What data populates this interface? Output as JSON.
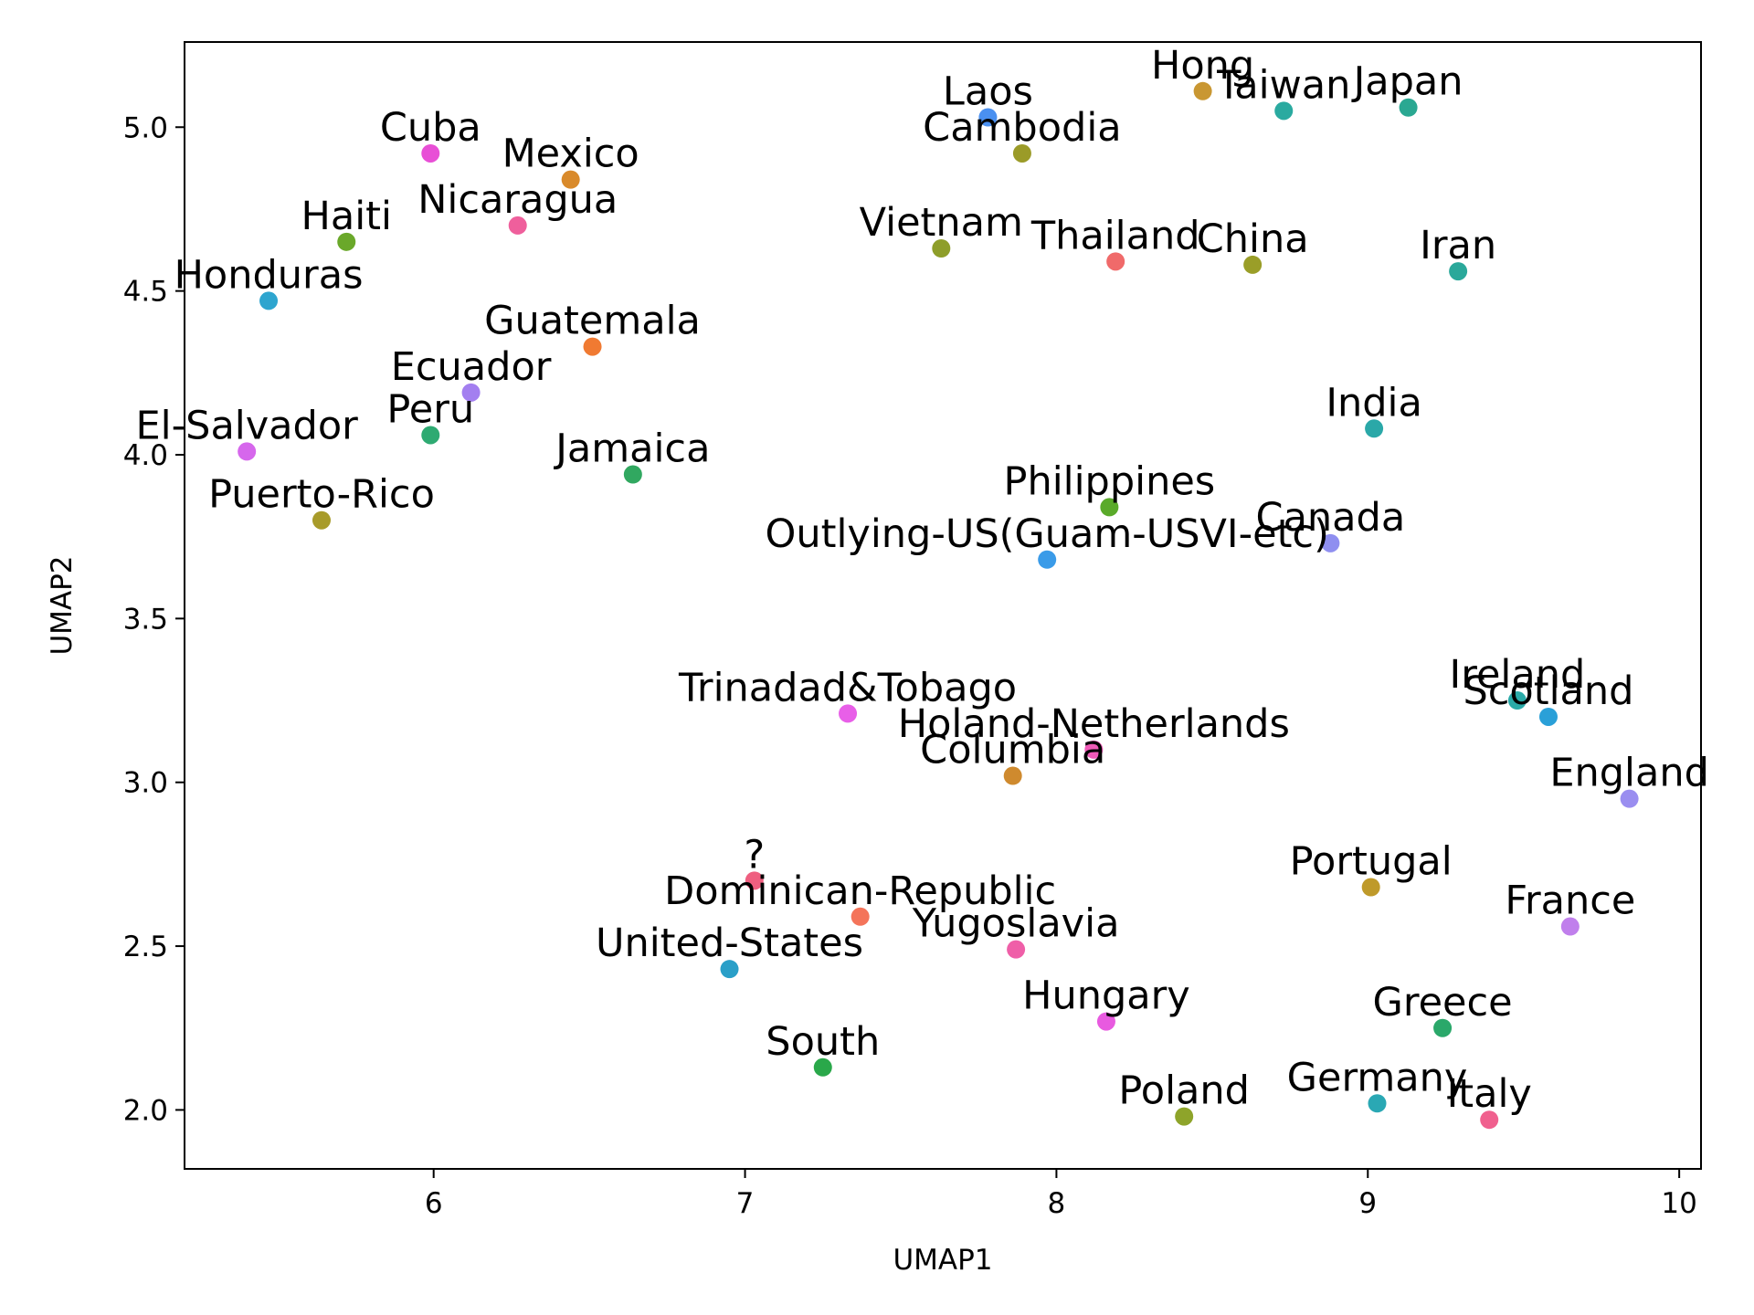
{
  "chart_data": {
    "type": "scatter",
    "xlabel": "UMAP1",
    "ylabel": "UMAP2",
    "xlim": [
      5.2,
      10.07
    ],
    "ylim": [
      1.82,
      5.26
    ],
    "x_ticks": [
      6,
      7,
      8,
      9,
      10
    ],
    "y_ticks": [
      2.0,
      2.5,
      3.0,
      3.5,
      4.0,
      4.5,
      5.0
    ],
    "x_tick_labels": [
      "6",
      "7",
      "8",
      "9",
      "10"
    ],
    "y_tick_labels": [
      "2.0",
      "2.5",
      "3.0",
      "3.5",
      "4.0",
      "4.5",
      "5.0"
    ],
    "grid": false,
    "points": [
      {
        "label": "Cuba",
        "x": 5.99,
        "y": 4.92,
        "color": "#e84fd6"
      },
      {
        "label": "Mexico",
        "x": 6.44,
        "y": 4.84,
        "color": "#d98a2b"
      },
      {
        "label": "Haiti",
        "x": 5.72,
        "y": 4.65,
        "color": "#6aa82a"
      },
      {
        "label": "Nicaragua",
        "x": 6.27,
        "y": 4.7,
        "color": "#ef5f9c"
      },
      {
        "label": "Honduras",
        "x": 5.47,
        "y": 4.47,
        "color": "#2ea5cf"
      },
      {
        "label": "Guatemala",
        "x": 6.51,
        "y": 4.33,
        "color": "#f07a32"
      },
      {
        "label": "Ecuador",
        "x": 6.12,
        "y": 4.19,
        "color": "#a37ff0"
      },
      {
        "label": "El-Salvador",
        "x": 5.4,
        "y": 4.01,
        "color": "#d667ec"
      },
      {
        "label": "Peru",
        "x": 5.99,
        "y": 4.06,
        "color": "#2eaa72"
      },
      {
        "label": "Jamaica",
        "x": 6.64,
        "y": 3.94,
        "color": "#31a860"
      },
      {
        "label": "Puerto-Rico",
        "x": 5.64,
        "y": 3.8,
        "color": "#a89b2a"
      },
      {
        "label": "Laos",
        "x": 7.78,
        "y": 5.03,
        "color": "#4a90f0"
      },
      {
        "label": "Cambodia",
        "x": 7.89,
        "y": 4.92,
        "color": "#9b9b28"
      },
      {
        "label": "Hong",
        "x": 8.47,
        "y": 5.11,
        "color": "#c99732"
      },
      {
        "label": "Taiwan",
        "x": 8.73,
        "y": 5.05,
        "color": "#2aaaa0"
      },
      {
        "label": "Japan",
        "x": 9.13,
        "y": 5.06,
        "color": "#2aa892"
      },
      {
        "label": "Vietnam",
        "x": 7.63,
        "y": 4.63,
        "color": "#8e9e2a"
      },
      {
        "label": "Thailand",
        "x": 8.19,
        "y": 4.59,
        "color": "#f06a6a"
      },
      {
        "label": "China",
        "x": 8.63,
        "y": 4.58,
        "color": "#9a9e28"
      },
      {
        "label": "Iran",
        "x": 9.29,
        "y": 4.56,
        "color": "#2aa89a"
      },
      {
        "label": "India",
        "x": 9.02,
        "y": 4.08,
        "color": "#2aa8a8"
      },
      {
        "label": "Philippines",
        "x": 8.17,
        "y": 3.84,
        "color": "#5aaa2a"
      },
      {
        "label": "Outlying-US(Guam-USVI-etc)",
        "x": 7.97,
        "y": 3.68,
        "color": "#3a9be8"
      },
      {
        "label": "Canada",
        "x": 8.88,
        "y": 3.73,
        "color": "#8f8ff0"
      },
      {
        "label": "Trinadad&Tobago",
        "x": 7.33,
        "y": 3.21,
        "color": "#e85fe8"
      },
      {
        "label": "Holand-Netherlands",
        "x": 8.12,
        "y": 3.1,
        "color": "#f05ab8"
      },
      {
        "label": "Columbia",
        "x": 7.86,
        "y": 3.02,
        "color": "#cf8a2e"
      },
      {
        "label": "Ireland",
        "x": 9.48,
        "y": 3.25,
        "color": "#2aaaa8"
      },
      {
        "label": "Scotland",
        "x": 9.58,
        "y": 3.2,
        "color": "#2aa0d8"
      },
      {
        "label": "England",
        "x": 9.84,
        "y": 2.95,
        "color": "#9a8ef0"
      },
      {
        "label": "?",
        "x": 7.03,
        "y": 2.7,
        "color": "#ef5f80"
      },
      {
        "label": "Dominican-Republic",
        "x": 7.37,
        "y": 2.59,
        "color": "#f4745a"
      },
      {
        "label": "Yugoslavia",
        "x": 7.87,
        "y": 2.49,
        "color": "#ef5fa8"
      },
      {
        "label": "United-States",
        "x": 6.95,
        "y": 2.43,
        "color": "#2a9fc8"
      },
      {
        "label": "Portugal",
        "x": 9.01,
        "y": 2.68,
        "color": "#bf9a2a"
      },
      {
        "label": "France",
        "x": 9.65,
        "y": 2.56,
        "color": "#c07fec"
      },
      {
        "label": "Hungary",
        "x": 8.16,
        "y": 2.27,
        "color": "#e85ae0"
      },
      {
        "label": "Greece",
        "x": 9.24,
        "y": 2.25,
        "color": "#2aa86a"
      },
      {
        "label": "South",
        "x": 7.25,
        "y": 2.13,
        "color": "#2aa84a"
      },
      {
        "label": "Poland",
        "x": 8.41,
        "y": 1.98,
        "color": "#8ea42a"
      },
      {
        "label": "Germany",
        "x": 9.03,
        "y": 2.02,
        "color": "#2aa8b4"
      },
      {
        "label": "Italy",
        "x": 9.39,
        "y": 1.97,
        "color": "#f0608e"
      }
    ]
  }
}
